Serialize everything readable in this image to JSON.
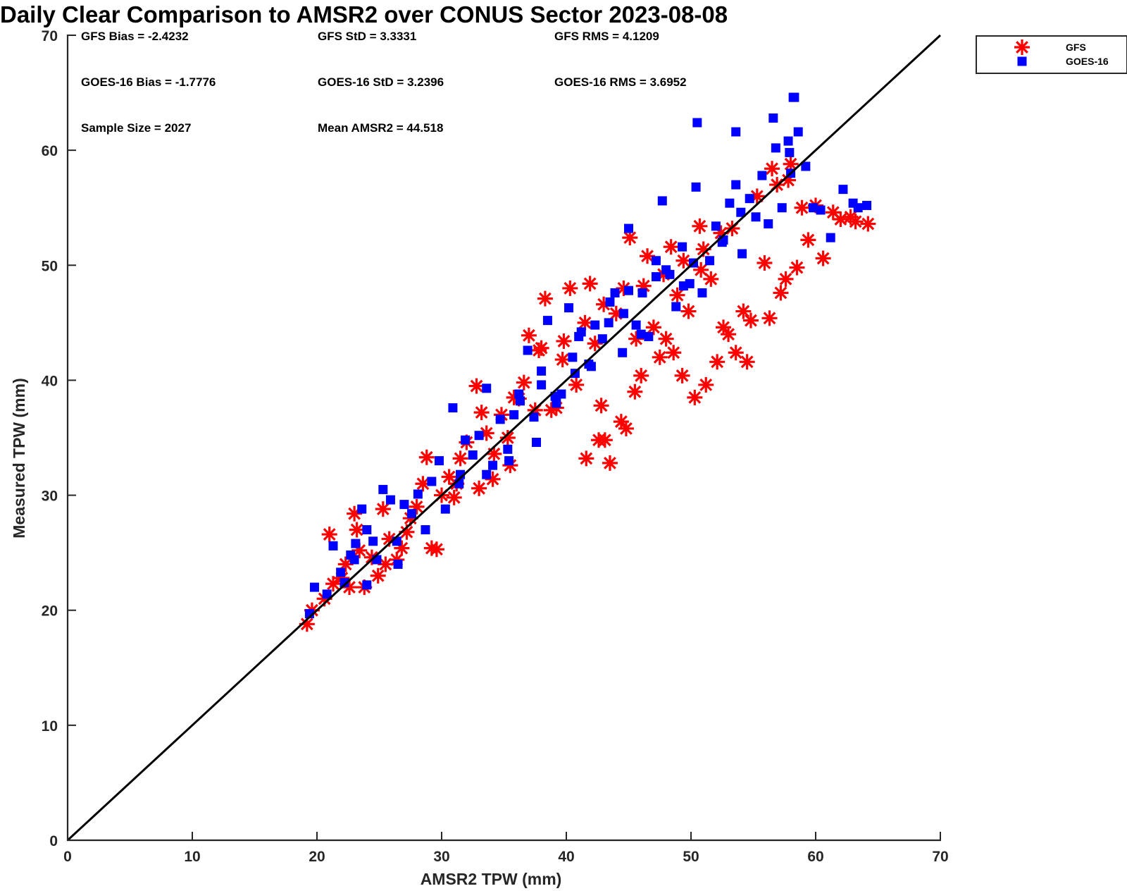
{
  "chart_data": {
    "type": "scatter",
    "title": "Daily Clear Comparison to AMSR2 over CONUS Sector 2023-08-08",
    "xlabel": "AMSR2 TPW (mm)",
    "ylabel": "Measured TPW (mm)",
    "xlim": [
      0,
      70
    ],
    "ylim": [
      0,
      70
    ],
    "xticks": [
      "0",
      "10",
      "20",
      "30",
      "40",
      "50",
      "60",
      "70"
    ],
    "yticks": [
      "0",
      "10",
      "20",
      "30",
      "40",
      "50",
      "60",
      "70"
    ],
    "grid": false,
    "legend_position": "outside-top-right",
    "reference_line": {
      "from": [
        0,
        0
      ],
      "to": [
        70,
        70
      ],
      "color": "#000000"
    },
    "stats": [
      "GFS Bias = -2.4232",
      "GFS StD = 3.3331",
      "GFS RMS = 4.1209",
      "GOES-16 Bias = -1.7776",
      "GOES-16 StD = 3.2396",
      "GOES-16 RMS = 3.6952",
      "Sample Size = 2027",
      "Mean AMSR2 = 44.518"
    ],
    "series": [
      {
        "name": "GFS",
        "marker": "asterisk",
        "color": "#ff0000",
        "x": [
          19.2,
          19.6,
          20.6,
          21.0,
          21.3,
          22.0,
          22.3,
          22.6,
          23.0,
          23.2,
          23.4,
          23.8,
          24.4,
          24.9,
          25.3,
          25.8,
          26.4,
          26.8,
          27.2,
          28.0,
          28.8,
          29.2,
          29.6,
          30.0,
          30.6,
          31.2,
          31.5,
          32.0,
          32.8,
          33.2,
          33.6,
          34.1,
          34.2,
          34.8,
          35.3,
          35.8,
          36.2,
          36.6,
          37.0,
          37.5,
          38.0,
          38.3,
          38.8,
          39.2,
          39.7,
          40.3,
          40.8,
          41.6,
          41.9,
          42.3,
          42.8,
          43.1,
          43.5,
          44.0,
          44.4,
          44.8,
          45.1,
          45.6,
          46.0,
          46.5,
          47.0,
          47.5,
          48.0,
          48.4,
          48.9,
          49.3,
          49.8,
          50.3,
          50.7,
          51.2,
          51.6,
          52.1,
          52.6,
          53.0,
          53.3,
          53.6,
          54.2,
          54.8,
          55.3,
          55.9,
          56.3,
          56.9,
          57.2,
          57.6,
          58.0,
          58.5,
          58.9,
          59.4,
          60.0,
          60.6,
          61.4,
          62.0,
          62.8,
          63.2,
          64.2,
          39.8,
          41.5,
          43.0,
          44.6,
          46.2,
          47.8,
          49.4,
          51.0,
          52.4,
          45.5,
          50.8,
          57.8,
          35.5,
          31.0,
          27.5,
          25.5,
          33.0,
          37.8,
          42.6,
          48.6,
          54.5,
          56.5,
          28.5
        ],
        "y": [
          18.8,
          20.0,
          21.0,
          26.6,
          22.3,
          22.8,
          24.0,
          22.0,
          28.4,
          27.0,
          25.2,
          22.0,
          24.6,
          23.0,
          28.8,
          26.2,
          24.4,
          25.4,
          26.8,
          29.0,
          33.3,
          25.4,
          25.3,
          30.0,
          31.6,
          31.0,
          33.2,
          34.6,
          39.5,
          37.2,
          35.4,
          31.4,
          33.6,
          37.0,
          35.0,
          38.5,
          38.4,
          39.8,
          43.9,
          37.4,
          42.8,
          47.1,
          37.4,
          37.6,
          41.8,
          48.0,
          39.6,
          33.2,
          48.4,
          43.2,
          37.8,
          34.8,
          32.8,
          45.8,
          36.4,
          35.8,
          52.4,
          43.6,
          40.4,
          50.8,
          44.6,
          42.0,
          43.6,
          51.6,
          47.4,
          40.4,
          46.0,
          38.5,
          53.4,
          39.6,
          48.8,
          41.6,
          44.6,
          44.0,
          53.2,
          42.4,
          46.0,
          45.2,
          56.0,
          50.2,
          45.4,
          57.0,
          47.6,
          48.8,
          58.8,
          49.8,
          55.0,
          52.2,
          55.2,
          50.6,
          54.6,
          54.0,
          54.2,
          53.8,
          53.6,
          43.4,
          45.0,
          46.6,
          48.0,
          48.2,
          49.2,
          50.4,
          51.4,
          52.8,
          39.0,
          49.6,
          57.4,
          32.6,
          29.8,
          28.0,
          24.0,
          30.6,
          42.6,
          34.8,
          42.4,
          41.6,
          58.4,
          31.0
        ]
      },
      {
        "name": "GOES-16",
        "marker": "square",
        "color": "#0000ff",
        "x": [
          19.4,
          19.8,
          20.8,
          21.3,
          21.9,
          22.2,
          22.7,
          23.1,
          23.6,
          24.0,
          24.5,
          24.8,
          25.3,
          25.9,
          26.4,
          27.0,
          27.6,
          28.1,
          28.7,
          29.2,
          29.8,
          30.3,
          30.9,
          31.4,
          31.9,
          32.5,
          33.0,
          33.6,
          34.1,
          34.7,
          35.3,
          35.8,
          36.3,
          36.9,
          37.4,
          38.0,
          38.5,
          39.1,
          39.6,
          40.2,
          40.7,
          41.2,
          41.8,
          42.3,
          42.9,
          43.4,
          43.9,
          44.5,
          45.0,
          45.6,
          46.1,
          46.6,
          47.2,
          47.7,
          48.3,
          48.8,
          49.3,
          49.9,
          50.4,
          50.9,
          51.5,
          52.0,
          52.5,
          53.1,
          53.6,
          54.1,
          54.7,
          55.2,
          55.7,
          56.2,
          56.8,
          57.3,
          57.9,
          58.2,
          58.6,
          59.2,
          59.8,
          60.4,
          61.2,
          62.2,
          63.0,
          63.4,
          64.1,
          50.5,
          53.6,
          56.6,
          58.3,
          57.8,
          58.0,
          47.2,
          45.0,
          43.5,
          41.0,
          36.2,
          31.5,
          23.0,
          24.0,
          26.5,
          38.0,
          40.5,
          44.6,
          48.0,
          50.2,
          52.6,
          42.0,
          46.0,
          49.4,
          54.0,
          39.2,
          37.6,
          33.6,
          35.4
        ],
        "y": [
          19.7,
          22.0,
          21.4,
          25.6,
          23.3,
          22.4,
          24.8,
          25.8,
          28.8,
          27.0,
          26.0,
          24.4,
          30.5,
          29.6,
          26.0,
          29.2,
          28.4,
          30.1,
          27.0,
          31.2,
          33.0,
          28.8,
          37.6,
          31.0,
          34.8,
          33.5,
          35.2,
          39.3,
          32.6,
          36.6,
          34.0,
          37.0,
          38.2,
          42.6,
          36.8,
          40.8,
          45.2,
          38.6,
          38.8,
          46.3,
          40.6,
          44.2,
          41.4,
          44.8,
          43.6,
          45.0,
          47.6,
          42.4,
          53.2,
          44.8,
          47.6,
          43.8,
          50.4,
          55.6,
          49.2,
          46.4,
          51.6,
          48.4,
          56.8,
          47.6,
          50.4,
          53.4,
          52.0,
          55.4,
          57.0,
          51.0,
          55.8,
          54.2,
          57.8,
          53.6,
          60.2,
          55.0,
          59.8,
          64.6,
          61.6,
          58.6,
          55.0,
          54.8,
          52.4,
          56.6,
          55.4,
          55.0,
          55.2,
          62.4,
          61.6,
          62.8,
          64.6,
          60.8,
          58.0,
          49.0,
          47.8,
          46.8,
          43.8,
          38.8,
          31.8,
          24.4,
          22.2,
          24.0,
          39.6,
          42.0,
          45.8,
          49.6,
          50.2,
          52.2,
          41.2,
          44.0,
          48.2,
          54.6,
          38.0,
          34.6,
          31.8,
          33.0
        ]
      }
    ]
  }
}
